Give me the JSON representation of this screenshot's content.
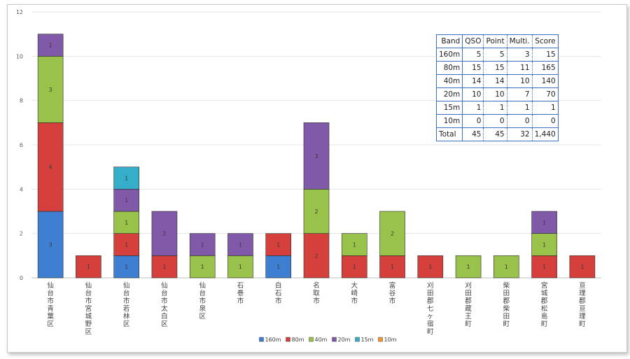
{
  "chart_data": {
    "type": "bar",
    "stacked": true,
    "categories": [
      "仙台市青葉区",
      "仙台市宮城野区",
      "仙台市若林区",
      "仙台市太白区",
      "仙台市泉区",
      "石巻市",
      "白石市",
      "名取市",
      "大崎市",
      "富谷市",
      "刈田郡七ヶ宿町",
      "刈田郡蔵王町",
      "柴田郡柴田町",
      "宮城郡松島町",
      "亘理郡亘理町"
    ],
    "series": [
      {
        "name": "160m",
        "color": "#3e7fd1",
        "values": [
          3,
          0,
          1,
          0,
          0,
          0,
          1,
          0,
          0,
          0,
          0,
          0,
          0,
          0,
          0
        ]
      },
      {
        "name": "80m",
        "color": "#d6403c",
        "values": [
          4,
          1,
          1,
          1,
          0,
          0,
          1,
          2,
          1,
          1,
          1,
          0,
          0,
          1,
          1
        ]
      },
      {
        "name": "40m",
        "color": "#98c24a",
        "values": [
          3,
          0,
          1,
          0,
          1,
          1,
          0,
          2,
          1,
          2,
          0,
          1,
          1,
          1,
          0
        ]
      },
      {
        "name": "20m",
        "color": "#8059a8",
        "values": [
          1,
          0,
          1,
          2,
          1,
          1,
          0,
          3,
          0,
          0,
          0,
          0,
          0,
          1,
          0
        ]
      },
      {
        "name": "15m",
        "color": "#35aec9",
        "values": [
          0,
          0,
          1,
          0,
          0,
          0,
          0,
          0,
          0,
          0,
          0,
          0,
          0,
          0,
          0
        ]
      },
      {
        "name": "10m",
        "color": "#f3952f",
        "values": [
          0,
          0,
          0,
          0,
          0,
          0,
          0,
          0,
          0,
          0,
          0,
          0,
          0,
          0,
          0
        ]
      }
    ],
    "yticks": [
      "0",
      "2",
      "4",
      "6",
      "8",
      "10",
      "12"
    ],
    "ylim": [
      0,
      12
    ],
    "legend_position": "bottom",
    "grid": true,
    "title": "",
    "xlabel": "",
    "ylabel": ""
  },
  "score_table": {
    "headers": [
      "Band",
      "QSO",
      "Point",
      "Multi.",
      "Score"
    ],
    "rows": [
      [
        "160m",
        "5",
        "5",
        "3",
        "15"
      ],
      [
        "80m",
        "15",
        "15",
        "11",
        "165"
      ],
      [
        "40m",
        "14",
        "14",
        "10",
        "140"
      ],
      [
        "20m",
        "10",
        "10",
        "7",
        "70"
      ],
      [
        "15m",
        "1",
        "1",
        "1",
        "1"
      ],
      [
        "10m",
        "0",
        "0",
        "0",
        "0"
      ]
    ],
    "total": [
      "Total",
      "45",
      "45",
      "32",
      "1,440"
    ]
  }
}
